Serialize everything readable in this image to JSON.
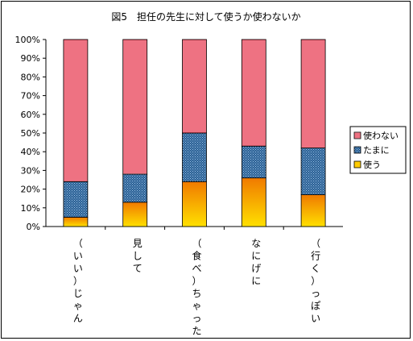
{
  "chart_data": {
    "type": "bar",
    "stacked": true,
    "percent": true,
    "title": "図5　担任の先生に対して使うか使わないか",
    "categories": [
      "（いい）じゃん",
      "見して",
      "（食べ）ちゃった",
      "なにげに",
      "（行く）っぽい"
    ],
    "series": [
      {
        "name": "使う",
        "values": [
          5,
          13,
          24,
          26,
          17
        ],
        "color": "#FFCC00"
      },
      {
        "name": "たまに",
        "values": [
          19,
          15,
          26,
          17,
          25
        ],
        "color": "#336699"
      },
      {
        "name": "使わない",
        "values": [
          76,
          72,
          50,
          57,
          58
        ],
        "color": "#E8455A"
      }
    ],
    "yticks": [
      "0%",
      "10%",
      "20%",
      "30%",
      "40%",
      "50%",
      "60%",
      "70%",
      "80%",
      "90%",
      "100%"
    ],
    "ylim": [
      0,
      100
    ],
    "legend_position": "right",
    "legend_order": [
      "使わない",
      "たまに",
      "使う"
    ]
  }
}
